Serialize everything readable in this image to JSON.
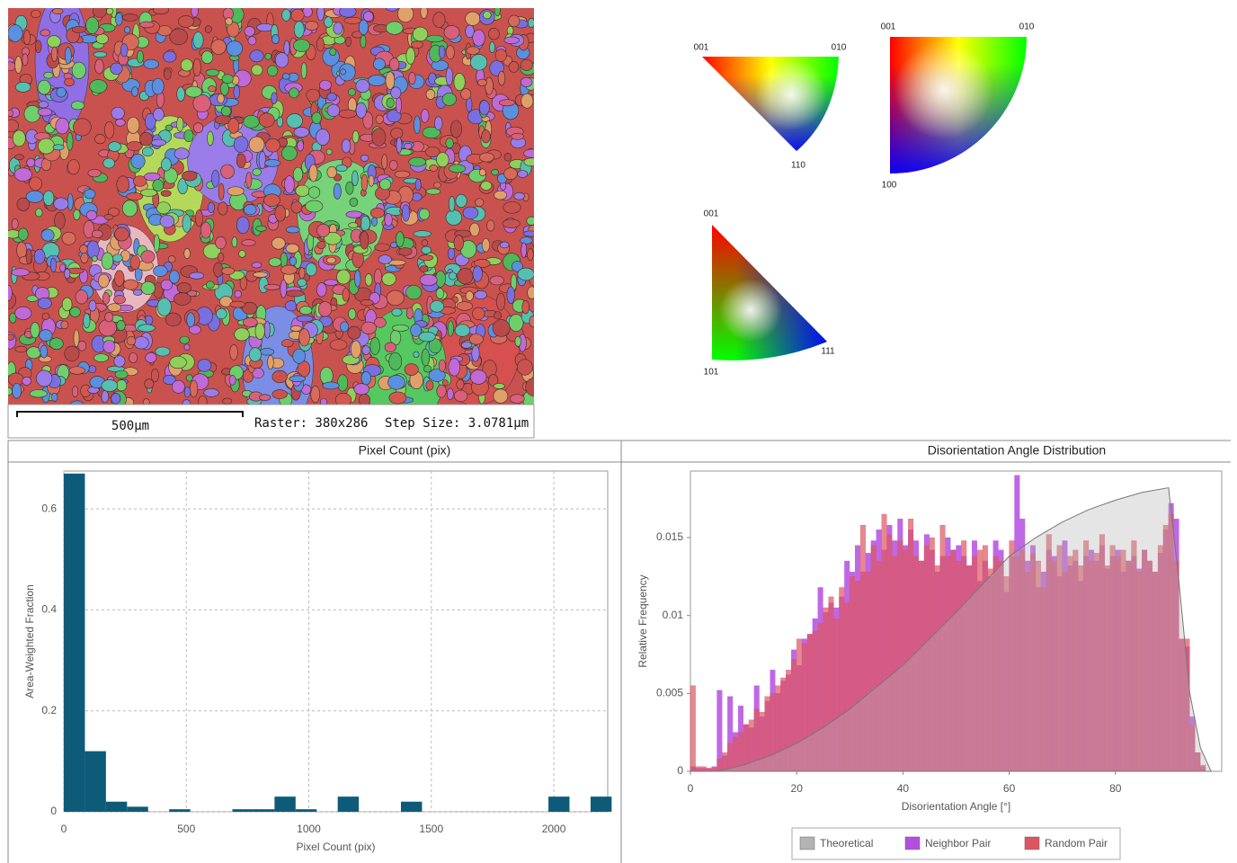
{
  "map": {
    "scale_bar": "500µm",
    "raster": "Raster: 380x286",
    "step_size": "Step Size: 3.0781µm"
  },
  "ipf_keys": [
    [
      "001",
      "010",
      "110"
    ],
    [
      "001",
      "010",
      "100"
    ],
    [
      "001",
      "101",
      "111"
    ]
  ],
  "chart_data": [
    {
      "type": "histogram",
      "title": "Pixel Count (pix)",
      "x_label": "Pixel Count (pix)",
      "y_label": "Area-Weighted Fraction",
      "bins": [
        0,
        86,
        172,
        258,
        344,
        430,
        516,
        602,
        688,
        774,
        860,
        946,
        1032,
        1118,
        1204,
        1290,
        1376,
        1462,
        1548,
        1634,
        1720,
        1806,
        1892,
        1978,
        2064,
        2150,
        2236
      ],
      "values": [
        0.67,
        0.12,
        0.02,
        0.01,
        0,
        0.005,
        0,
        0,
        0.005,
        0.005,
        0.03,
        0.005,
        0,
        0.03,
        0,
        0,
        0.02,
        0,
        0,
        0,
        0,
        0,
        0,
        0.03,
        0,
        0.03
      ],
      "color": "#0d5b78",
      "xlim": [
        0,
        2220
      ],
      "ylim": [
        0,
        0.675
      ],
      "xticks": [
        0,
        500,
        1000,
        1500,
        2000
      ],
      "yticks": [
        0,
        0.2,
        0.4,
        0.6
      ],
      "grid": true
    },
    {
      "type": "histogram",
      "title": "Disorientation Angle Distribution",
      "x_label": "Disorientation Angle [°]",
      "y_label": "Relative Frequency",
      "bins": [
        0,
        1,
        2,
        3,
        4,
        5,
        6,
        7,
        8,
        9,
        10,
        11,
        12,
        13,
        14,
        15,
        16,
        17,
        18,
        19,
        20,
        21,
        22,
        23,
        24,
        25,
        26,
        27,
        28,
        29,
        30,
        31,
        32,
        33,
        34,
        35,
        36,
        37,
        38,
        39,
        40,
        41,
        42,
        43,
        44,
        45,
        46,
        47,
        48,
        49,
        50,
        51,
        52,
        53,
        54,
        55,
        56,
        57,
        58,
        59,
        60,
        61,
        62,
        63,
        64,
        65,
        66,
        67,
        68,
        69,
        70,
        71,
        72,
        73,
        74,
        75,
        76,
        77,
        78,
        79,
        80,
        81,
        82,
        83,
        84,
        85,
        86,
        87,
        88,
        89,
        90,
        91,
        92,
        93,
        94,
        95,
        96,
        97
      ],
      "series": [
        {
          "name": "Theoretical",
          "kind": "area",
          "color": "#b4b4b4",
          "x": [
            0,
            5,
            10,
            15,
            20,
            25,
            30,
            35,
            40,
            45,
            50,
            55,
            60,
            65,
            70,
            75,
            80,
            85,
            90,
            92,
            94,
            96,
            98
          ],
          "values": [
            0,
            0,
            0.0004,
            0.001,
            0.0018,
            0.0028,
            0.004,
            0.0054,
            0.0068,
            0.0085,
            0.0102,
            0.012,
            0.0138,
            0.015,
            0.016,
            0.0168,
            0.0174,
            0.0179,
            0.0182,
            0.012,
            0.005,
            0.0015,
            0
          ]
        },
        {
          "name": "Neighbor Pair",
          "color": "#b44ee0",
          "values": [
            0.0003,
            0.0002,
            0.0002,
            0.0002,
            0.0003,
            0.0052,
            0.001,
            0.0048,
            0.0025,
            0.0042,
            0.003,
            0.0028,
            0.0055,
            0.0035,
            0.0045,
            0.0065,
            0.005,
            0.0058,
            0.0062,
            0.0078,
            0.0068,
            0.0085,
            0.0088,
            0.0098,
            0.0118,
            0.0102,
            0.0108,
            0.0105,
            0.0112,
            0.0135,
            0.0128,
            0.0145,
            0.0128,
            0.014,
            0.0148,
            0.0155,
            0.0142,
            0.0158,
            0.0148,
            0.0162,
            0.0145,
            0.0155,
            0.0148,
            0.0135,
            0.0152,
            0.0142,
            0.0128,
            0.0138,
            0.015,
            0.0142,
            0.0145,
            0.0138,
            0.0132,
            0.0148,
            0.0122,
            0.0135,
            0.0125,
            0.0148,
            0.0142,
            0.0115,
            0.0138,
            0.019,
            0.0162,
            0.0135,
            0.0145,
            0.0118,
            0.0128,
            0.0142,
            0.0138,
            0.0125,
            0.0148,
            0.0132,
            0.0135,
            0.0122,
            0.0138,
            0.0142,
            0.0135,
            0.0145,
            0.013,
            0.0138,
            0.0142,
            0.0128,
            0.0135,
            0.0138,
            0.013,
            0.0142,
            0.0135,
            0.0128,
            0.014,
            0.0155,
            0.0172,
            0.0162,
            0.0085,
            0.008,
            0.0035,
            0.0012,
            0.0003
          ]
        },
        {
          "name": "Random Pair",
          "color": "#dd5560",
          "values": [
            0.0055,
            0.0003,
            0.0003,
            0.0002,
            0.0002,
            0.0008,
            0.0012,
            0.0018,
            0.0022,
            0.0025,
            0.003,
            0.0033,
            0.004,
            0.0038,
            0.0048,
            0.005,
            0.0055,
            0.006,
            0.0065,
            0.0072,
            0.0085,
            0.0082,
            0.0088,
            0.009,
            0.0095,
            0.0105,
            0.0112,
            0.0098,
            0.0118,
            0.0108,
            0.0125,
            0.0122,
            0.0158,
            0.0128,
            0.0145,
            0.0135,
            0.0165,
            0.0152,
            0.0138,
            0.0148,
            0.0142,
            0.0162,
            0.0138,
            0.0135,
            0.0145,
            0.015,
            0.0132,
            0.0158,
            0.0138,
            0.0142,
            0.0135,
            0.0148,
            0.0132,
            0.0138,
            0.0142,
            0.0145,
            0.013,
            0.0138,
            0.0135,
            0.0125,
            0.0148,
            0.0138,
            0.0142,
            0.0128,
            0.014,
            0.0135,
            0.0118,
            0.0152,
            0.0135,
            0.0145,
            0.0128,
            0.0138,
            0.0142,
            0.0132,
            0.0148,
            0.0135,
            0.014,
            0.0152,
            0.0132,
            0.0145,
            0.0138,
            0.0142,
            0.0135,
            0.0148,
            0.0128,
            0.0142,
            0.0135,
            0.0128,
            0.0145,
            0.0158,
            0.0165,
            0.0135,
            0.0085,
            0.0085,
            0.003,
            0.0012,
            0.0004
          ]
        }
      ],
      "xlim": [
        0,
        100
      ],
      "ylim": [
        0,
        0.01927
      ],
      "xticks": [
        0,
        20,
        40,
        60,
        80
      ],
      "yticks": [
        0,
        0.005,
        0.01,
        0.015
      ],
      "grid": false
    }
  ]
}
